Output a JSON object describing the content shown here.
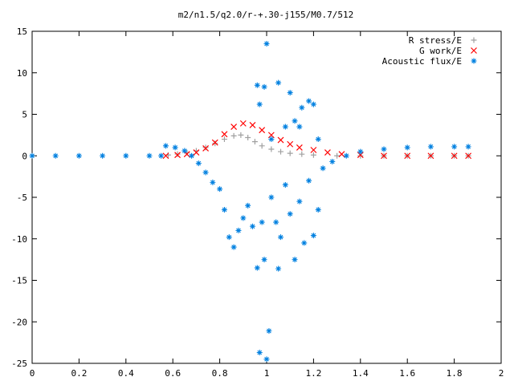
{
  "chart_data": {
    "type": "scatter",
    "title": "m2/n1.5/q2.0/r-+.30-j155/M0.7/512",
    "xlabel": "",
    "ylabel": "",
    "xlim": [
      0,
      2
    ],
    "ylim": [
      -25,
      15
    ],
    "x_ticks": [
      "0",
      "0.2",
      "0.4",
      "0.6",
      "0.8",
      "1",
      "1.2",
      "1.4",
      "1.6",
      "1.8",
      "2"
    ],
    "y_ticks": [
      "15",
      "10",
      "5",
      "0",
      "-5",
      "-10",
      "-15",
      "-20",
      "-25"
    ],
    "grid": false,
    "legend_position": "top-right",
    "series": [
      {
        "name": "R stress/E",
        "marker": "plus",
        "color": "#a0a0a0",
        "points": [
          [
            0.58,
            0.1
          ],
          [
            0.62,
            0.2
          ],
          [
            0.66,
            0.4
          ],
          [
            0.7,
            0.6
          ],
          [
            0.74,
            1.0
          ],
          [
            0.78,
            1.5
          ],
          [
            0.82,
            2.0
          ],
          [
            0.86,
            2.4
          ],
          [
            0.89,
            2.5
          ],
          [
            0.92,
            2.2
          ],
          [
            0.95,
            1.7
          ],
          [
            0.98,
            1.2
          ],
          [
            1.02,
            0.8
          ],
          [
            1.06,
            0.5
          ],
          [
            1.1,
            0.3
          ],
          [
            1.15,
            0.2
          ],
          [
            1.2,
            0.1
          ],
          [
            1.3,
            0.0
          ],
          [
            1.4,
            0.0
          ],
          [
            1.5,
            0.0
          ],
          [
            1.6,
            0.0
          ],
          [
            1.7,
            0.0
          ],
          [
            1.8,
            0.0
          ],
          [
            1.86,
            0.0
          ]
        ]
      },
      {
        "name": "G work/E",
        "marker": "cross",
        "color": "#ff0000",
        "points": [
          [
            0.57,
            0.0
          ],
          [
            0.62,
            0.1
          ],
          [
            0.66,
            0.2
          ],
          [
            0.7,
            0.4
          ],
          [
            0.74,
            0.9
          ],
          [
            0.78,
            1.6
          ],
          [
            0.82,
            2.6
          ],
          [
            0.86,
            3.5
          ],
          [
            0.9,
            3.9
          ],
          [
            0.94,
            3.7
          ],
          [
            0.98,
            3.1
          ],
          [
            1.02,
            2.5
          ],
          [
            1.06,
            1.9
          ],
          [
            1.1,
            1.4
          ],
          [
            1.14,
            1.0
          ],
          [
            1.2,
            0.7
          ],
          [
            1.26,
            0.4
          ],
          [
            1.32,
            0.2
          ],
          [
            1.4,
            0.1
          ],
          [
            1.5,
            0.0
          ],
          [
            1.6,
            0.0
          ],
          [
            1.7,
            0.0
          ],
          [
            1.8,
            0.0
          ],
          [
            1.86,
            0.0
          ]
        ]
      },
      {
        "name": "Acoustic flux/E",
        "marker": "star",
        "color": "#0080e0",
        "points": [
          [
            0.0,
            0.0
          ],
          [
            0.1,
            0.0
          ],
          [
            0.2,
            0.0
          ],
          [
            0.3,
            0.0
          ],
          [
            0.4,
            0.0
          ],
          [
            0.5,
            0.0
          ],
          [
            0.55,
            0.0
          ],
          [
            0.57,
            1.2
          ],
          [
            0.61,
            1.0
          ],
          [
            0.65,
            0.6
          ],
          [
            0.68,
            0.0
          ],
          [
            0.71,
            -0.9
          ],
          [
            0.74,
            -2.0
          ],
          [
            0.77,
            -3.2
          ],
          [
            0.8,
            -4.0
          ],
          [
            0.82,
            -6.5
          ],
          [
            0.84,
            -9.8
          ],
          [
            0.86,
            -11.0
          ],
          [
            0.88,
            -9.0
          ],
          [
            0.9,
            -7.5
          ],
          [
            0.92,
            -6.0
          ],
          [
            0.94,
            -8.5
          ],
          [
            0.96,
            -13.5
          ],
          [
            0.97,
            -23.7
          ],
          [
            0.98,
            -8.0
          ],
          [
            0.99,
            -12.5
          ],
          [
            1.0,
            -24.5
          ],
          [
            1.01,
            -21.1
          ],
          [
            1.02,
            -5.0
          ],
          [
            1.04,
            -8.0
          ],
          [
            1.05,
            -13.6
          ],
          [
            1.06,
            -9.8
          ],
          [
            1.08,
            -3.5
          ],
          [
            1.1,
            -7.0
          ],
          [
            1.12,
            -12.5
          ],
          [
            1.14,
            -5.5
          ],
          [
            1.16,
            -10.5
          ],
          [
            1.18,
            -3.0
          ],
          [
            1.2,
            -9.6
          ],
          [
            1.22,
            -6.5
          ],
          [
            1.24,
            -1.5
          ],
          [
            0.96,
            8.5
          ],
          [
            0.97,
            6.2
          ],
          [
            0.99,
            8.3
          ],
          [
            1.0,
            13.5
          ],
          [
            1.02,
            2.0
          ],
          [
            1.05,
            8.8
          ],
          [
            1.08,
            3.5
          ],
          [
            1.1,
            7.6
          ],
          [
            1.12,
            4.2
          ],
          [
            1.14,
            3.5
          ],
          [
            1.15,
            5.8
          ],
          [
            1.18,
            6.6
          ],
          [
            1.2,
            6.2
          ],
          [
            1.22,
            2.0
          ],
          [
            1.28,
            -0.7
          ],
          [
            1.34,
            0.0
          ],
          [
            1.4,
            0.5
          ],
          [
            1.5,
            0.8
          ],
          [
            1.6,
            1.0
          ],
          [
            1.7,
            1.1
          ],
          [
            1.8,
            1.1
          ],
          [
            1.86,
            1.1
          ]
        ]
      }
    ]
  }
}
